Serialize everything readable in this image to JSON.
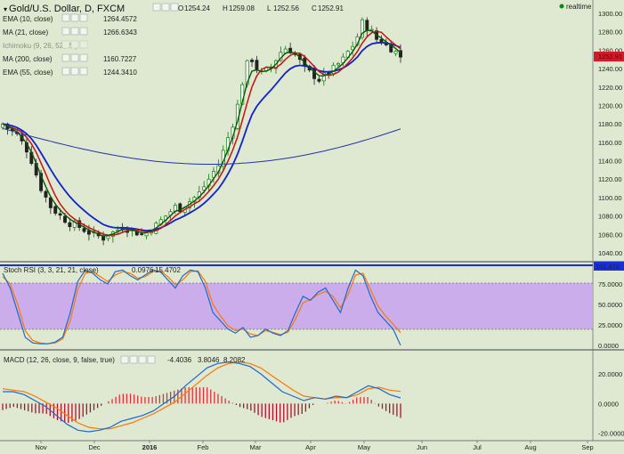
{
  "header": {
    "symbol": "Gold/U.S. Dollar, D, FXCM",
    "ohlc": [
      {
        "k": "O",
        "v": "1254.24"
      },
      {
        "k": "H",
        "v": "1259.08"
      },
      {
        "k": "L",
        "v": "1252.56"
      },
      {
        "k": "C",
        "v": "1252.91"
      }
    ],
    "realtime": "realtime",
    "colors": {
      "up": "#0a7a0a",
      "down": "#222222",
      "realtime_dot": "#0a8a0a"
    }
  },
  "legend": [
    {
      "name": "EMA (10, close)",
      "value": "1264.4572",
      "color": "#0a5a0a"
    },
    {
      "name": "MA (21, close)",
      "value": "1266.6343",
      "color": "#cc1010"
    },
    {
      "name": "Ichimoku (9, 26, 52, 26)",
      "value": "",
      "color": "#7f9fc0",
      "faded": true
    },
    {
      "name": "MA (200, close)",
      "value": "1160.7227",
      "color": "#2233aa"
    },
    {
      "name": "EMA (55, close)",
      "value": "1244.3410",
      "color": "#1122cc"
    }
  ],
  "price_axis": {
    "ticks": [
      "1300.00",
      "1280.00",
      "1260.00",
      "1240.00",
      "1220.00",
      "1200.00",
      "1180.00",
      "1160.00",
      "1140.00",
      "1120.00",
      "1100.00",
      "1080.00",
      "1060.00",
      "1040.00"
    ],
    "last_price": "1252.91",
    "last_price_color": "#d11a2a"
  },
  "stoch": {
    "label": "Stoch RSI (3, 3, 21, 21, close)",
    "v1": "0.0976",
    "v1_color": "#1a6ad1",
    "v2": "15.4702",
    "v2_color": "#ff7700",
    "ticks": [
      "75.0000",
      "50.0000",
      "25.0000",
      "0.0000"
    ],
    "top_badge": "101.416",
    "band_color": "#c8a2f0"
  },
  "macd": {
    "label": "MACD (12, 26, close, 9, false, true)",
    "v1": "-4.4036",
    "v1_color": "#d11a2a",
    "v2": "3.8046",
    "v2_color": "#1a6ad1",
    "v3": "8.2082",
    "v3_color": "#ff7700",
    "ticks": [
      "20.0000",
      "0.0000",
      "-20.0000"
    ]
  },
  "time_axis": [
    "Nov",
    "Dec",
    "2016",
    "Feb",
    "Mar",
    "Apr",
    "May",
    "Jun",
    "Jul",
    "Aug",
    "Sep"
  ],
  "chart_data": [
    {
      "type": "candlestick",
      "title": "Gold/U.S. Dollar, D, FXCM",
      "ylim": [
        1030,
        1310
      ],
      "x_labels": [
        "Nov",
        "Dec",
        "2016",
        "Feb",
        "Mar",
        "Apr",
        "May",
        "Jun",
        "Jul",
        "Aug",
        "Sep"
      ],
      "close_path": [
        1180,
        1175,
        1172,
        1168,
        1160,
        1152,
        1140,
        1125,
        1110,
        1100,
        1090,
        1085,
        1080,
        1076,
        1072,
        1070,
        1068,
        1065,
        1062,
        1060,
        1058,
        1056,
        1060,
        1062,
        1065,
        1068,
        1066,
        1064,
        1062,
        1060,
        1062,
        1066,
        1070,
        1075,
        1080,
        1085,
        1090,
        1088,
        1092,
        1096,
        1100,
        1105,
        1112,
        1120,
        1128,
        1135,
        1150,
        1165,
        1180,
        1200,
        1225,
        1245,
        1250,
        1240,
        1235,
        1238,
        1242,
        1250,
        1258,
        1262,
        1260,
        1255,
        1248,
        1240,
        1236,
        1232,
        1228,
        1232,
        1236,
        1240,
        1245,
        1250,
        1258,
        1265,
        1275,
        1290,
        1285,
        1280,
        1272,
        1270,
        1265,
        1262,
        1258,
        1253
      ],
      "series": [
        {
          "name": "EMA (10, close)",
          "last": 1264.4572
        },
        {
          "name": "MA (21, close)",
          "last": 1266.6343
        },
        {
          "name": "MA (200, close)",
          "last": 1160.7227
        },
        {
          "name": "EMA (55, close)",
          "last": 1244.341
        }
      ]
    },
    {
      "type": "line",
      "title": "Stoch RSI (3, 3, 21, 21, close)",
      "ylim": [
        0,
        100
      ],
      "series": [
        {
          "name": "K",
          "values": [
            88,
            70,
            40,
            10,
            3,
            2,
            2,
            4,
            10,
            40,
            78,
            92,
            88,
            80,
            75,
            90,
            92,
            85,
            80,
            86,
            92,
            90,
            80,
            70,
            85,
            92,
            90,
            70,
            40,
            30,
            20,
            15,
            22,
            10,
            12,
            20,
            15,
            12,
            18,
            40,
            60,
            55,
            65,
            70,
            55,
            40,
            70,
            92,
            85,
            60,
            40,
            30,
            20,
            0.0976
          ]
        },
        {
          "name": "D",
          "values": [
            84,
            75,
            50,
            18,
            6,
            3,
            2,
            3,
            8,
            30,
            68,
            88,
            90,
            84,
            78,
            86,
            90,
            88,
            82,
            84,
            90,
            91,
            84,
            74,
            80,
            90,
            91,
            78,
            50,
            36,
            24,
            18,
            20,
            14,
            12,
            18,
            16,
            13,
            16,
            32,
            52,
            56,
            62,
            66,
            60,
            46,
            62,
            86,
            88,
            68,
            48,
            36,
            26,
            15.4702
          ]
        }
      ]
    },
    {
      "type": "line",
      "title": "MACD (12, 26, close, 9, false, true)",
      "ylim": [
        -22,
        26
      ],
      "series": [
        {
          "name": "MACD",
          "values": [
            8,
            8,
            6,
            2,
            -2,
            -8,
            -14,
            -18,
            -19,
            -18,
            -16,
            -12,
            -10,
            -8,
            -5,
            0,
            5,
            12,
            18,
            24,
            27,
            28,
            27,
            25,
            20,
            14,
            8,
            5,
            2,
            4,
            3,
            5,
            4,
            8,
            12,
            10,
            6,
            3.8046
          ]
        },
        {
          "name": "Signal",
          "values": [
            10,
            9,
            8,
            5,
            1,
            -3,
            -8,
            -13,
            -16,
            -17,
            -17,
            -15,
            -13,
            -10,
            -7,
            -3,
            1,
            7,
            13,
            19,
            24,
            27,
            28,
            27,
            24,
            19,
            14,
            9,
            5,
            4,
            3,
            4,
            4,
            6,
            10,
            11,
            9,
            8.2082
          ]
        },
        {
          "name": "Histogram",
          "values": [
            -2,
            -1,
            -2,
            -3,
            -3,
            -5,
            -6,
            -5,
            -3,
            -1,
            1,
            3,
            3,
            2,
            2,
            3,
            4,
            5,
            5,
            5,
            3,
            1,
            -1,
            -2,
            -4,
            -5,
            -6,
            -4,
            -3,
            0,
            0,
            1,
            0,
            2,
            2,
            -1,
            -3,
            -4.4036
          ]
        }
      ]
    }
  ]
}
